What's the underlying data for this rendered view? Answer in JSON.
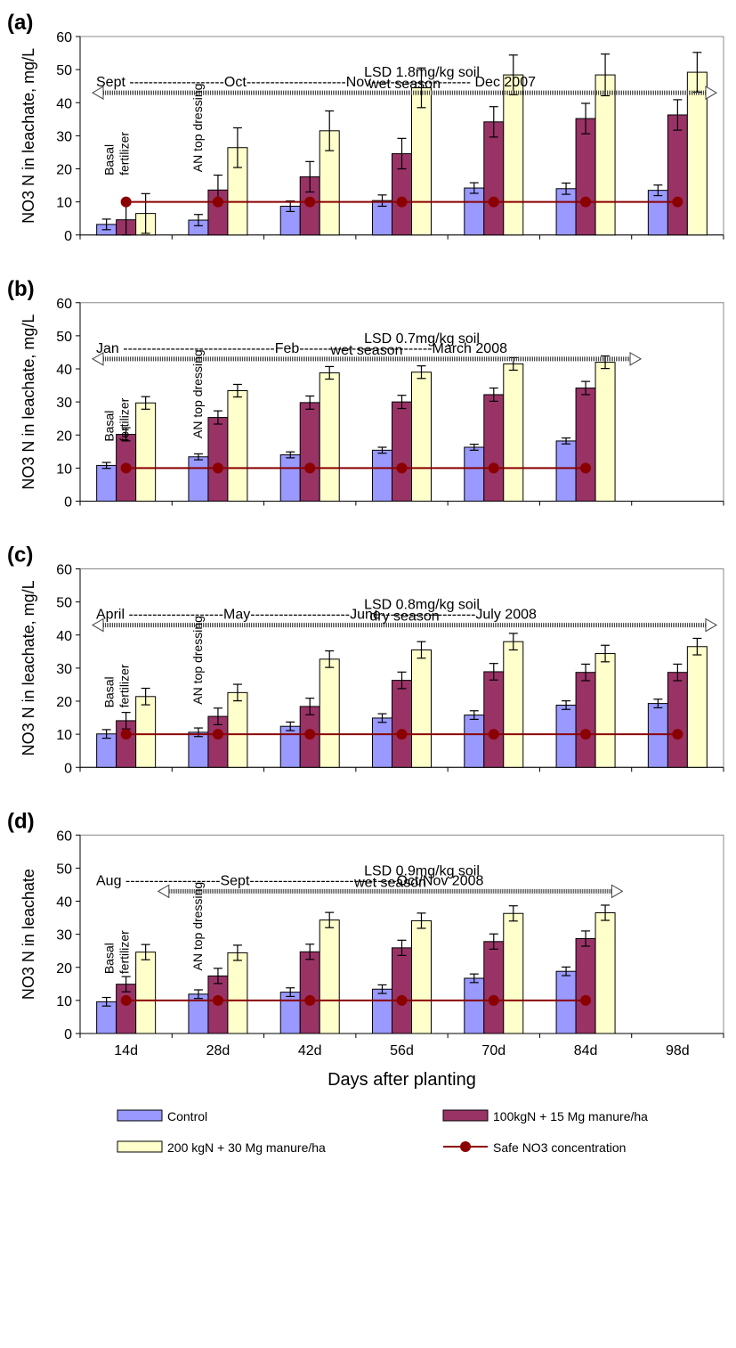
{
  "chart_data": [
    {
      "type": "bar",
      "panel_label": "(a)",
      "ylabel": "NO3 N in leachate, mg/L",
      "ylim": [
        0,
        60
      ],
      "yticks": [
        "0",
        "10",
        "20",
        "30",
        "40",
        "50",
        "60"
      ],
      "categories": [
        "14d",
        "28d",
        "42d",
        "56d",
        "70d",
        "84d",
        "98d"
      ],
      "series": [
        {
          "name": "Control",
          "values": [
            3.2,
            4.5,
            8.7,
            10.4,
            14.2,
            14.0,
            13.5
          ],
          "errors": [
            1.6,
            1.7,
            1.6,
            1.7,
            1.6,
            1.7,
            1.6
          ]
        },
        {
          "name": "100kgN + 15 Mg manure/ha",
          "values": [
            4.6,
            13.6,
            17.6,
            24.6,
            34.2,
            35.2,
            36.3
          ],
          "errors": [
            4.6,
            4.5,
            4.6,
            4.6,
            4.6,
            4.6,
            4.6
          ]
        },
        {
          "name": "200 kgN + 30 Mg manure/ha",
          "values": [
            6.5,
            26.4,
            31.5,
            44.5,
            48.4,
            48.4,
            49.2
          ],
          "errors": [
            6.0,
            6.0,
            6.0,
            6.0,
            6.0,
            6.3,
            6.0
          ]
        }
      ],
      "safe_line": {
        "name": "Safe NO3 concentration",
        "values": [
          10,
          10,
          10,
          10,
          10,
          10,
          10
        ]
      },
      "annotations": {
        "months": "Sept --------------------Oct---------------------Nov--------------------- Dec 2007",
        "lsd": "LSD 1.8mg/kg soil",
        "season": "wet season",
        "basal": [
          "Basal",
          "fertilizer"
        ],
        "topdress": "AN top dressing"
      }
    },
    {
      "type": "bar",
      "panel_label": "(b)",
      "ylabel": "NO3 N in leachate, mg/L",
      "ylim": [
        0,
        60
      ],
      "yticks": [
        "0",
        "10",
        "20",
        "30",
        "40",
        "50",
        "60"
      ],
      "categories": [
        "14d",
        "28d",
        "42d",
        "56d",
        "70d",
        "84d",
        "98d"
      ],
      "series": [
        {
          "name": "Control",
          "values": [
            10.8,
            13.4,
            14.0,
            15.4,
            16.3,
            18.2,
            null
          ],
          "errors": [
            0.9,
            0.9,
            0.9,
            0.9,
            0.9,
            0.9,
            null
          ]
        },
        {
          "name": "100kgN + 15 Mg manure/ha",
          "values": [
            20.2,
            25.3,
            29.8,
            30.0,
            32.2,
            34.2,
            null
          ],
          "errors": [
            2.0,
            2.0,
            2.0,
            2.0,
            2.0,
            2.0,
            null
          ]
        },
        {
          "name": "200 kgN + 30 Mg manure/ha",
          "values": [
            29.7,
            33.4,
            38.8,
            39.0,
            41.5,
            42.0,
            null
          ],
          "errors": [
            1.9,
            1.9,
            1.9,
            1.9,
            1.9,
            1.9,
            null
          ]
        }
      ],
      "safe_line": {
        "name": "Safe NO3 concentration",
        "values": [
          10,
          10,
          10,
          10,
          10,
          10,
          null
        ]
      },
      "annotations": {
        "months": "Jan --------------------------------Feb----------------------------March 2008",
        "lsd": "LSD 0.7mg/kg soil",
        "season": "wet season",
        "basal": [
          "Basal",
          "fertilizer"
        ],
        "topdress": "AN top dressing"
      }
    },
    {
      "type": "bar",
      "panel_label": "(c)",
      "ylabel": "NO3 N in leachate, mg/L",
      "ylim": [
        0,
        60
      ],
      "yticks": [
        "0",
        "10",
        "20",
        "30",
        "40",
        "50",
        "60"
      ],
      "categories": [
        "14d",
        "28d",
        "42d",
        "56d",
        "70d",
        "84d",
        "98d"
      ],
      "series": [
        {
          "name": "Control",
          "values": [
            10.1,
            10.6,
            12.4,
            14.9,
            15.8,
            18.8,
            19.3
          ],
          "errors": [
            1.3,
            1.3,
            1.3,
            1.3,
            1.3,
            1.3,
            1.3
          ]
        },
        {
          "name": "100kgN + 15 Mg manure/ha",
          "values": [
            14.1,
            15.4,
            18.4,
            26.3,
            28.9,
            28.7,
            28.7
          ],
          "errors": [
            2.5,
            2.5,
            2.5,
            2.5,
            2.5,
            2.5,
            2.5
          ]
        },
        {
          "name": "200 kgN + 30 Mg manure/ha",
          "values": [
            21.4,
            22.6,
            32.7,
            35.5,
            38.0,
            34.4,
            36.5
          ],
          "errors": [
            2.5,
            2.5,
            2.5,
            2.5,
            2.5,
            2.5,
            2.5
          ]
        }
      ],
      "safe_line": {
        "name": "Safe NO3 concentration",
        "values": [
          10,
          10,
          10,
          10,
          10,
          10,
          10
        ]
      },
      "annotations": {
        "months": "April --------------------May---------------------June--------------------July 2008",
        "lsd": "LSD 0.8mg/kg soil",
        "season": "dry season",
        "basal": [
          "Basal",
          "fertilizer"
        ],
        "topdress": "AN top dressing"
      }
    },
    {
      "type": "bar",
      "panel_label": "(d)",
      "ylabel": "NO3 N in leachate",
      "xlabel": "Days after planting",
      "ylim": [
        0,
        60
      ],
      "yticks": [
        "0",
        "10",
        "20",
        "30",
        "40",
        "50",
        "60"
      ],
      "categories": [
        "14d",
        "28d",
        "42d",
        "56d",
        "70d",
        "84d",
        "98d"
      ],
      "series": [
        {
          "name": "Control",
          "values": [
            9.6,
            11.9,
            12.5,
            13.4,
            16.7,
            18.8,
            null
          ],
          "errors": [
            1.3,
            1.3,
            1.3,
            1.3,
            1.3,
            1.3,
            null
          ]
        },
        {
          "name": "100kgN + 15 Mg manure/ha",
          "values": [
            14.9,
            17.4,
            24.7,
            25.9,
            27.8,
            28.7,
            null
          ],
          "errors": [
            2.3,
            2.3,
            2.3,
            2.3,
            2.3,
            2.3,
            null
          ]
        },
        {
          "name": "200 kgN + 30 Mg manure/ha",
          "values": [
            24.6,
            24.4,
            34.3,
            34.1,
            36.3,
            36.5,
            null
          ],
          "errors": [
            2.3,
            2.3,
            2.3,
            2.3,
            2.3,
            2.3,
            null
          ]
        }
      ],
      "safe_line": {
        "name": "Safe NO3 concentration",
        "values": [
          10,
          10,
          10,
          10,
          10,
          10,
          null
        ]
      },
      "annotations": {
        "months": "Aug --------------------Sept-------------------------------Oct/Nov 2008",
        "lsd": "LSD 0.9mg/kg soil",
        "season": "wet season",
        "basal": [
          "Basal",
          "fertilizer"
        ],
        "topdress": "AN top dressing"
      }
    }
  ],
  "legend": {
    "items": [
      {
        "label": "Control",
        "kind": "bar",
        "color": "#9999ff"
      },
      {
        "label": "100kgN + 15 Mg manure/ha",
        "kind": "bar",
        "color": "#993366"
      },
      {
        "label": "200 kgN + 30 Mg manure/ha",
        "kind": "bar",
        "color": "#ffffcc"
      },
      {
        "label": "Safe NO3 concentration",
        "kind": "line",
        "color": "#8b0000"
      }
    ]
  },
  "colors": {
    "control": "#9999ff",
    "mid": "#993366",
    "high": "#ffffcc",
    "safe": "#8b0000"
  }
}
